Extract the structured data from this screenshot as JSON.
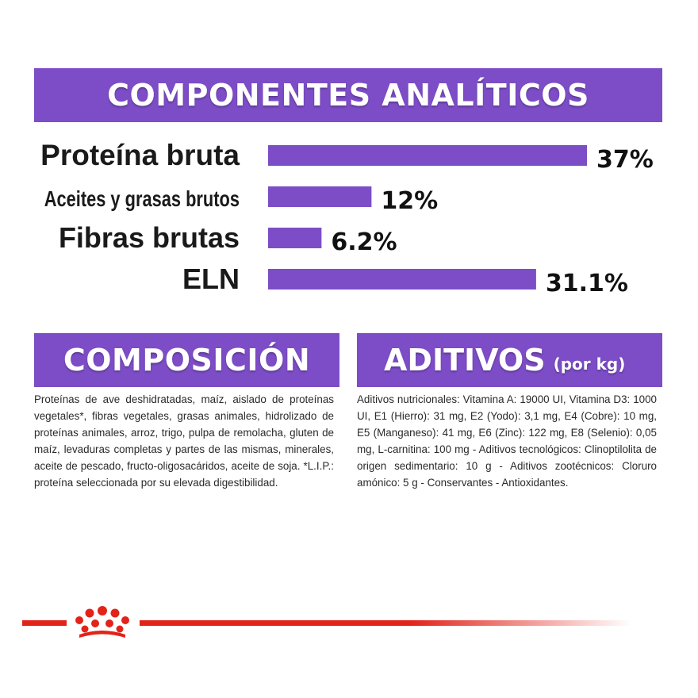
{
  "headings": {
    "main": "COMPONENTES ANALÍTICOS",
    "composition": "COMPOSICIÓN",
    "additives": "ADITIVOS",
    "additives_unit": "(por kg)"
  },
  "chart_data": {
    "type": "bar",
    "orientation": "horizontal",
    "categories": [
      "Proteína bruta",
      "Aceites y grasas brutos",
      "Fibras brutas",
      "ELN"
    ],
    "values": [
      37,
      12,
      6.2,
      31.1
    ],
    "value_labels": [
      "37%",
      "12%",
      "6.2%",
      "31.1%"
    ],
    "unit": "%",
    "xlim": [
      0,
      37
    ],
    "grid": false,
    "bar_color": "#7d4dc7"
  },
  "composition_text": "Proteínas de ave deshidratadas, maíz, aislado de proteínas vegetales*, fibras vegetales, grasas animales, hidrolizado de proteínas animales, arroz, trigo, pulpa de remolacha, gluten de maíz, levaduras completas y partes de las mismas, minerales, aceite de pescado, fructo-oligosacáridos, aceite de soja. *L.I.P.: proteína seleccionada por su elevada digestibilidad.",
  "additives_text": "Aditivos nutricionales: Vitamina A: 19000 UI, Vitamina D3: 1000 UI, E1 (Hierro): 31 mg, E2 (Yodo): 3,1 mg, E4 (Cobre): 10 mg, E5 (Manganeso): 41 mg, E6 (Zinc): 122 mg, E8 (Selenio): 0,05 mg, L-carnitina: 100 mg - Aditivos tecnológicos: Clinoptilolita de origen sedimentario: 10 g - Aditivos zootécnicos: Cloruro amónico: 5 g - Conservantes - Antioxidantes.",
  "colors": {
    "accent": "#7d4dc7",
    "brand_red": "#e2231a"
  },
  "footer": {
    "logo_icon": "royal-canin-crown-icon"
  }
}
